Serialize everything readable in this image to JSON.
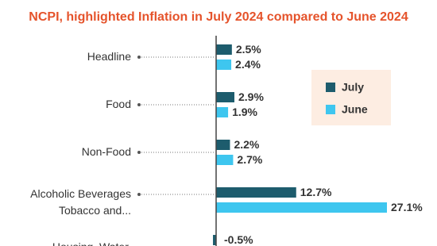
{
  "chart_data": {
    "type": "hbar",
    "title": "NCPI, highlighted Inflation in July 2024 compared to June 2024",
    "categories": [
      "Headline",
      "Food",
      "Non-Food",
      "Alcoholic Beverages\nTobacco and...",
      "Housing, Water,"
    ],
    "series": [
      {
        "name": "July",
        "color": "#1d5c6d",
        "values": [
          2.5,
          2.9,
          2.2,
          12.7,
          -0.5
        ],
        "value_labels": [
          "2.5%",
          "2.9%",
          "2.2%",
          "12.7%",
          "-0.5%"
        ]
      },
      {
        "name": "June",
        "color": "#3ec6ef",
        "values": [
          2.4,
          1.9,
          2.7,
          27.1,
          null
        ],
        "value_labels": [
          "2.4%",
          "1.9%",
          "2.7%",
          "27.1%",
          null
        ]
      }
    ],
    "legend": "upper right"
  }
}
